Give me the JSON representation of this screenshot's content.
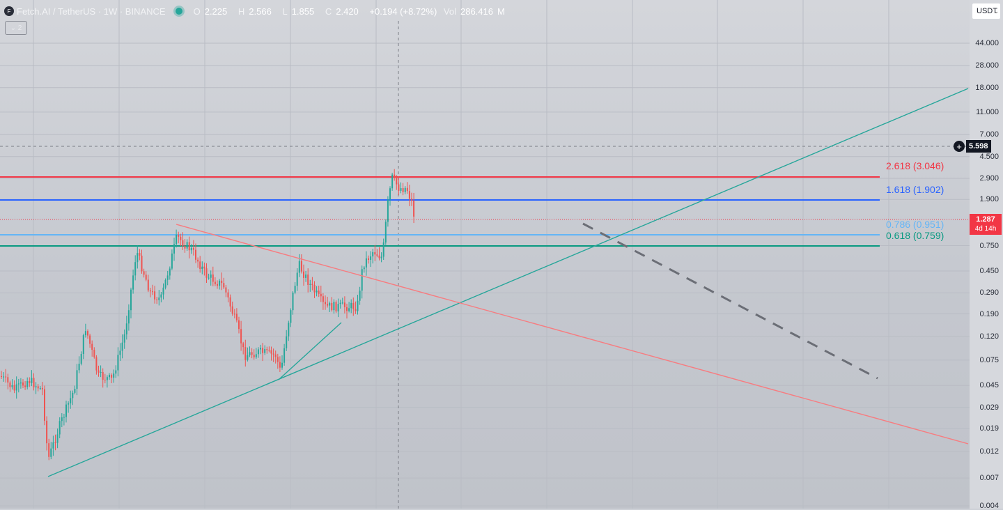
{
  "header": {
    "symbol": "Fetch.AI / TetherUS · 1W · BINANCE",
    "logo_icon": "fetchai-logo-icon",
    "ohlc": {
      "o_label": "O",
      "o": "2.225",
      "h_label": "H",
      "h": "2.566",
      "l_label": "L",
      "l": "1.855",
      "c_label": "C",
      "c": "2.420",
      "change": "+0.194 (+8.72%)",
      "vol_label": "Vol",
      "vol": "286.416",
      "vol_unit": "M"
    },
    "collapse_label": "⌄ 2"
  },
  "currency_select": {
    "value": "USDT"
  },
  "price_axis": {
    "labels": [
      "44.000",
      "28.000",
      "18.000",
      "11.000",
      "7.000",
      "4.500",
      "2.900",
      "1.900",
      "0.750",
      "0.450",
      "0.290",
      "0.190",
      "0.120",
      "0.075",
      "0.045",
      "0.029",
      "0.019",
      "0.012",
      "0.007",
      "0.004"
    ]
  },
  "crosshair": {
    "price": "5.598"
  },
  "last_price": {
    "price": "1.287",
    "countdown": "4d 14h"
  },
  "fib_levels": [
    {
      "label": "2.618 (3.046)",
      "color": "#f23645"
    },
    {
      "label": "1.618 (1.902)",
      "color": "#2962ff"
    },
    {
      "label": "0.786 (0.951)",
      "color": "#64b5f6"
    },
    {
      "label": "0.618 (0.759)",
      "color": "#089981"
    }
  ],
  "colors": {
    "up": "#26a69a",
    "down": "#ef5350",
    "trend_green": "#26a69a",
    "trend_red": "#f77c80",
    "projection": "#6b6e76"
  }
}
